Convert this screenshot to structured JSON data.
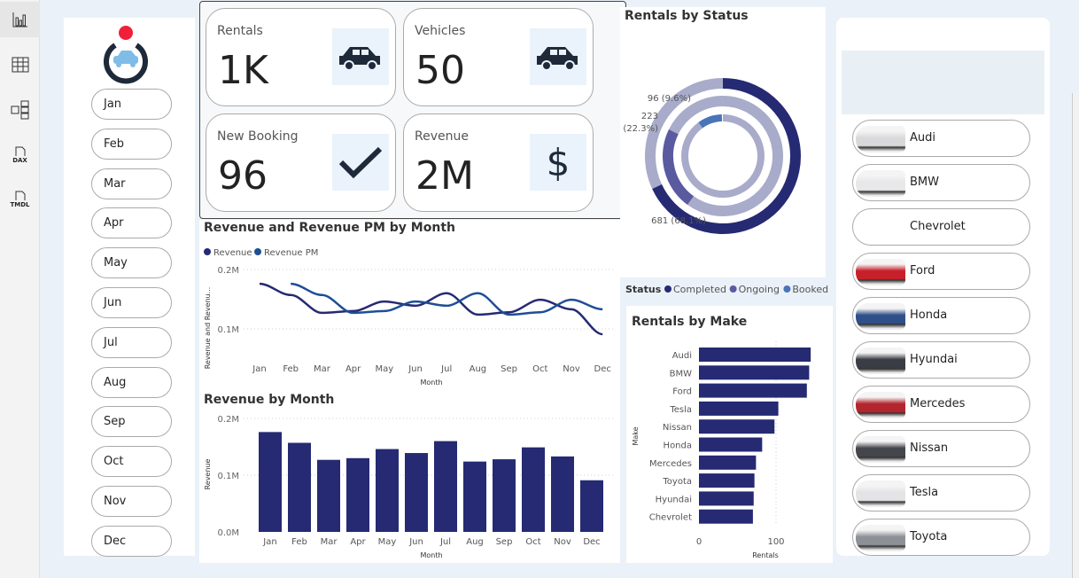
{
  "sidebar": {
    "icons": [
      "report-view-icon",
      "table-view-icon",
      "model-view-icon",
      "dax-query-icon",
      "tmdl-view-icon"
    ],
    "dax_label": "DAX",
    "tmdl_label": "TMDL"
  },
  "months": [
    "Jan",
    "Feb",
    "Mar",
    "Apr",
    "May",
    "Jun",
    "Jul",
    "Aug",
    "Sep",
    "Oct",
    "Nov",
    "Dec"
  ],
  "kpis": [
    {
      "label": "Rentals",
      "value": "1K",
      "icon": "car-icon"
    },
    {
      "label": "Vehicles",
      "value": "50",
      "icon": "car-icon"
    },
    {
      "label": "New Booking",
      "value": "96",
      "icon": "checkmark-icon"
    },
    {
      "label": "Revenue",
      "value": "2M",
      "icon": "dollar-icon"
    }
  ],
  "makes": [
    {
      "name": "Audi",
      "color": "#d9d9dc"
    },
    {
      "name": "BMW",
      "color": "#e8e8ea"
    },
    {
      "name": "Chevrolet",
      "color": ""
    },
    {
      "name": "Ford",
      "color": "#c8202a"
    },
    {
      "name": "Honda",
      "color": "#2f4f8a"
    },
    {
      "name": "Hyundai",
      "color": "#3a3d44"
    },
    {
      "name": "Mercedes",
      "color": "#b3262e"
    },
    {
      "name": "Nissan",
      "color": "#44464c"
    },
    {
      "name": "Tesla",
      "color": "#e4e4e6"
    },
    {
      "name": "Toyota",
      "color": "#8d9097"
    }
  ],
  "colors": {
    "navy": "#252a73",
    "blue": "#1f4e96",
    "ongoing": "#5a5aa0",
    "booked": "#4a74b8",
    "light": "#a8abc9"
  },
  "chart_data": [
    {
      "type": "line",
      "title": "Revenue and Revenue PM by Month",
      "xlabel": "Month",
      "ylabel": "Revenue and Revenu...",
      "categories": [
        "Jan",
        "Feb",
        "Mar",
        "Apr",
        "May",
        "Jun",
        "Jul",
        "Aug",
        "Sep",
        "Oct",
        "Nov",
        "Dec"
      ],
      "yticks": [
        "0.1M",
        "0.2M"
      ],
      "ylim": [
        0.05,
        0.2
      ],
      "grid": true,
      "legend": "top-left",
      "series": [
        {
          "name": "Revenue",
          "values": [
            0.176,
            0.157,
            0.127,
            0.13,
            0.146,
            0.139,
            0.16,
            0.124,
            0.128,
            0.149,
            0.133,
            0.091
          ]
        },
        {
          "name": "Revenue PM",
          "values": [
            null,
            0.176,
            0.157,
            0.127,
            0.13,
            0.146,
            0.139,
            0.16,
            0.124,
            0.128,
            0.149,
            0.133
          ]
        }
      ]
    },
    {
      "type": "bar",
      "title": "Revenue by Month",
      "xlabel": "Month",
      "ylabel": "Revenue",
      "categories": [
        "Jan",
        "Feb",
        "Mar",
        "Apr",
        "May",
        "Jun",
        "Jul",
        "Aug",
        "Sep",
        "Oct",
        "Nov",
        "Dec"
      ],
      "yticks": [
        "0.0M",
        "0.1M",
        "0.2M"
      ],
      "ylim": [
        0,
        0.2
      ],
      "values": [
        0.176,
        0.157,
        0.127,
        0.13,
        0.146,
        0.139,
        0.16,
        0.124,
        0.128,
        0.149,
        0.133,
        0.091
      ]
    },
    {
      "type": "pie",
      "title": "Rentals by Status",
      "legend_title": "Status",
      "legend": "bottom",
      "slices": [
        {
          "name": "Completed",
          "value": 681,
          "label": "681 (68.1%)"
        },
        {
          "name": "Ongoing",
          "value": 223,
          "label": "223 (22.3%)"
        },
        {
          "name": "Booked",
          "value": 96,
          "label": "96 (9.6%)"
        }
      ]
    },
    {
      "type": "bar",
      "orientation": "horizontal",
      "title": "Rentals by Make",
      "xlabel": "Rentals",
      "ylabel": "Make",
      "categories": [
        "Audi",
        "BMW",
        "Ford",
        "Tesla",
        "Nissan",
        "Honda",
        "Mercedes",
        "Toyota",
        "Hyundai",
        "Chevrolet"
      ],
      "values": [
        145,
        143,
        140,
        103,
        98,
        82,
        74,
        72,
        71,
        70
      ],
      "xticks": [
        "0",
        "100"
      ],
      "xlim": [
        0,
        160
      ]
    }
  ]
}
